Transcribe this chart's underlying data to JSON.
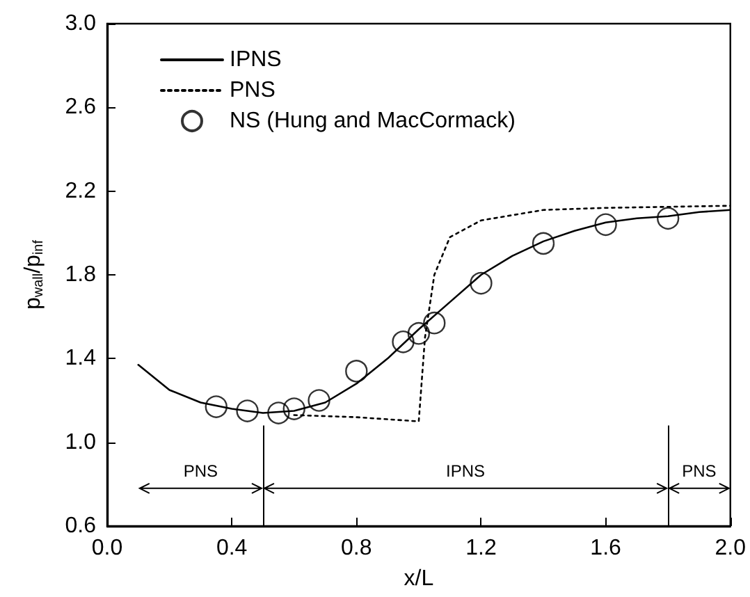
{
  "chart_data": {
    "type": "line",
    "xlabel": "x/L",
    "ylabel": "p$_{wall}$/p$_{inf}$",
    "xlim": [
      0,
      2
    ],
    "ylim": [
      0.6,
      3
    ],
    "xticks": [
      {
        "value": 0,
        "label": "0.0"
      },
      0.4,
      0.8,
      1.2,
      1.6,
      {
        "value": 2,
        "label": "2.0"
      }
    ],
    "yticks": [
      0.6,
      {
        "value": 1,
        "label": "1.0"
      },
      1.4,
      1.8,
      2.2,
      2.6,
      {
        "value": 3,
        "label": "3.0"
      }
    ],
    "grid": false,
    "legend": "top left",
    "series": [
      {
        "name": "IPNS",
        "color": "#000000",
        "line_style": "solid",
        "marker": "none",
        "x": [
          0.1,
          0.2,
          0.3,
          0.4,
          0.5,
          0.6,
          0.7,
          0.8,
          0.9,
          1.0,
          1.1,
          1.2,
          1.3,
          1.4,
          1.5,
          1.6,
          1.7,
          1.8,
          1.9,
          2.0
        ],
        "values": [
          1.37,
          1.25,
          1.19,
          1.16,
          1.14,
          1.15,
          1.19,
          1.28,
          1.4,
          1.54,
          1.67,
          1.8,
          1.89,
          1.96,
          2.01,
          2.05,
          2.07,
          2.08,
          2.1,
          2.11
        ]
      },
      {
        "name": "PNS",
        "color": "#000000",
        "line_style": "dotted",
        "marker": "none",
        "x": [
          0.6,
          0.8,
          1.0,
          1.02,
          1.05,
          1.1,
          1.2,
          1.4,
          1.6,
          2.0
        ],
        "values": [
          1.13,
          1.12,
          1.1,
          1.5,
          1.8,
          1.98,
          2.06,
          2.11,
          2.12,
          2.13
        ]
      },
      {
        "name": "NS (Hung and MacCormack)",
        "type": "scatter",
        "color": "#000000",
        "marker": "circle",
        "x": [
          0.35,
          0.45,
          0.55,
          0.6,
          0.68,
          0.8,
          0.95,
          1.0,
          1.05,
          1.2,
          1.4,
          1.6,
          1.8
        ],
        "values": [
          1.17,
          1.15,
          1.14,
          1.16,
          1.2,
          1.34,
          1.48,
          1.52,
          1.57,
          1.76,
          1.95,
          2.04,
          2.07
        ]
      }
    ],
    "ref_lines": [
      {
        "axis": "x",
        "value": 0.5
      },
      {
        "axis": "x",
        "value": 1.8
      }
    ],
    "annotations": [
      "PNS",
      "IPNS",
      "PNS"
    ]
  }
}
